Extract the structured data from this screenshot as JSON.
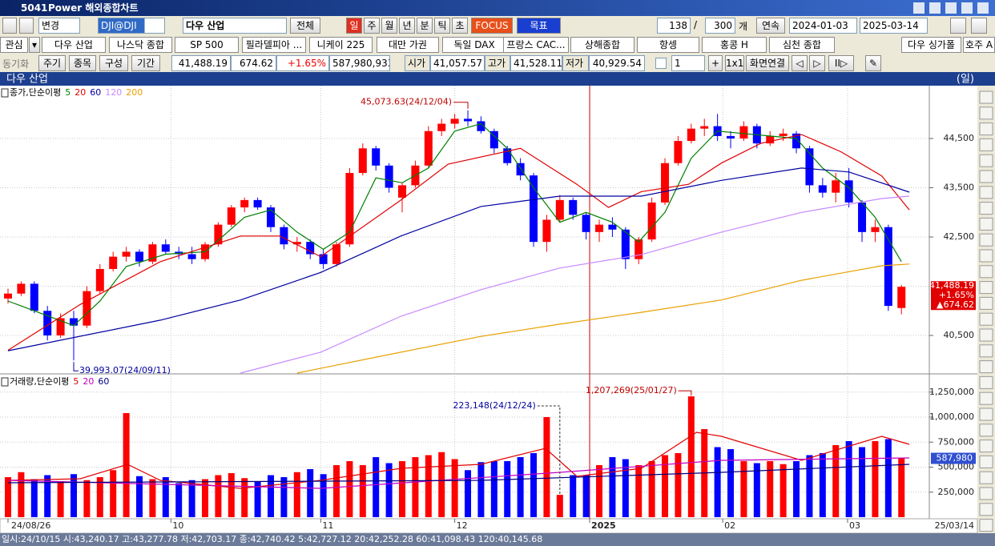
{
  "window": {
    "id": "5041",
    "title": "Power 해외종합차트"
  },
  "toolbar": {
    "change": "변경",
    "code": "DJI@DJI",
    "name": "다우 산업",
    "all": "전체",
    "periods": [
      "일",
      "주",
      "월",
      "년",
      "분",
      "틱",
      "초"
    ],
    "focus": "FOCUS",
    "target": "목표",
    "count": "138",
    "max": "300",
    "unit": "개",
    "continuous": "연속",
    "from": "2024-01-03",
    "to": "2025-03-14"
  },
  "tabs": [
    "관심",
    "다우 산업",
    "나스닥 종합",
    "SP 500",
    "필라델피아 ...",
    "니케이 225",
    "대만 가권",
    "독일 DAX",
    "프랑스 CAC...",
    "상해종합",
    "항셍",
    "홍콩 H",
    "심천 종합",
    "다우 싱가폴",
    "호주 A"
  ],
  "quote": {
    "buttons": [
      "동기화",
      "주기",
      "종목",
      "구성",
      "기간"
    ],
    "last": "41,488.19",
    "change": "674.62",
    "rate": "+1.65%",
    "volume": "587,980,933",
    "open_label": "시가",
    "open": "41,057.57",
    "high_label": "고가",
    "high": "41,528.11",
    "low_label": "저가",
    "low": "40,929.54",
    "layout": "1",
    "grid": "1x1",
    "link": "화면연결"
  },
  "panel_title": "다우 산업",
  "period_label": "(일)",
  "end_date": "25/03/14",
  "status": "일시:24/10/15 시:43,240.17 고:43,277.78 저:42,703.17 종:42,740.42 5:42,727.12 20:42,252.28 60:41,098.43 120:40,145.68",
  "chart_data": [
    {
      "type": "candlestick",
      "legend_title": "종가,단순이평",
      "up_color": "#ff0000",
      "down_color": "#0000ff",
      "open": [
        41250,
        41350,
        41550,
        41000,
        40500,
        40850,
        40700,
        41400,
        41850,
        42100,
        42200,
        42000,
        42350,
        42200,
        42150,
        42050,
        42350,
        42750,
        43100,
        43250,
        43100,
        42700,
        42350,
        42400,
        42150,
        41950,
        42350,
        43800,
        44300,
        43950,
        43300,
        43550,
        43950,
        44650,
        44800,
        44900,
        44850,
        44650,
        44300,
        44000,
        43750,
        42400,
        42850,
        43250,
        42950,
        42600,
        42750,
        42650,
        42050,
        42450,
        43200,
        44000,
        44450,
        44700,
        44750,
        44550,
        44500,
        44750,
        44400,
        44550,
        44600,
        44300,
        43550,
        43400,
        43650,
        43200,
        42600,
        42700,
        41057.57
      ],
      "high": [
        41450,
        41600,
        41600,
        41100,
        40950,
        41000,
        41500,
        41950,
        42200,
        42300,
        42250,
        42400,
        42450,
        42300,
        42300,
        42400,
        42800,
        43150,
        43300,
        43300,
        43150,
        42750,
        42500,
        42450,
        42250,
        42400,
        43900,
        44400,
        44350,
        44000,
        43600,
        44050,
        44750,
        44900,
        45000,
        45073.63,
        44950,
        44700,
        44350,
        44100,
        43800,
        42950,
        43350,
        43300,
        43000,
        42850,
        42900,
        42700,
        42500,
        43300,
        44100,
        44550,
        44800,
        44900,
        45000,
        44650,
        44850,
        44800,
        44650,
        44700,
        44650,
        44350,
        43700,
        43800,
        43900,
        43250,
        42850,
        42750,
        41528.11
      ],
      "low": [
        41150,
        41300,
        40950,
        40400,
        40450,
        39993.07,
        40650,
        41350,
        41800,
        42000,
        41900,
        41950,
        42150,
        42050,
        41950,
        42000,
        42300,
        42700,
        43000,
        43050,
        42600,
        42250,
        42200,
        42050,
        41850,
        41900,
        42300,
        43750,
        43850,
        43400,
        43000,
        43500,
        43900,
        44550,
        44700,
        44750,
        44600,
        44200,
        43950,
        43650,
        42300,
        42200,
        42800,
        42850,
        42450,
        42400,
        42500,
        41850,
        41950,
        42400,
        43150,
        43950,
        44400,
        44550,
        44450,
        44300,
        44450,
        44300,
        44350,
        44450,
        44200,
        43400,
        43300,
        43200,
        43100,
        42400,
        42400,
        41000,
        40929.54
      ],
      "close": [
        41350,
        41550,
        41000,
        40500,
        40850,
        40700,
        41400,
        41850,
        42100,
        42200,
        42000,
        42350,
        42200,
        42150,
        42050,
        42350,
        42750,
        43100,
        43250,
        43100,
        42700,
        42350,
        42400,
        42150,
        41950,
        42350,
        43800,
        44300,
        43950,
        43500,
        43550,
        43950,
        44650,
        44800,
        44900,
        44850,
        44650,
        44300,
        44000,
        43750,
        42400,
        42850,
        43250,
        42950,
        42600,
        42750,
        42650,
        42050,
        42450,
        43200,
        44000,
        44450,
        44700,
        44750,
        44550,
        44500,
        44750,
        44400,
        44550,
        44600,
        44300,
        43550,
        43400,
        43650,
        43200,
        42600,
        42700,
        41100,
        41488.19
      ],
      "series": [
        {
          "name": "5",
          "color": "#008000",
          "x": [
            0,
            3,
            5,
            7,
            9,
            12,
            15,
            18,
            20,
            22,
            24,
            26,
            28,
            30,
            32,
            34,
            36,
            38,
            40,
            42,
            44,
            46,
            48,
            50,
            52,
            54,
            56,
            58,
            60,
            62,
            64,
            66,
            68
          ],
          "values": [
            41200,
            40900,
            40700,
            41200,
            41900,
            42150,
            42200,
            42900,
            43050,
            42600,
            42250,
            42600,
            43700,
            43600,
            43900,
            44650,
            44800,
            44300,
            43500,
            42800,
            43000,
            42800,
            42400,
            43000,
            44100,
            44650,
            44600,
            44550,
            44500,
            43900,
            43500,
            42900,
            42000
          ]
        },
        {
          "name": "20",
          "color": "#e00000",
          "x": [
            0,
            5.5,
            11.6,
            17.7,
            20.7,
            23.8,
            29.9,
            33.5,
            39,
            43.3,
            45.7,
            48.2,
            51.8,
            54.3,
            57.3,
            60.4,
            63.4,
            66.5,
            68.6
          ],
          "values": [
            40200,
            41130,
            42000,
            42520,
            42520,
            42100,
            43250,
            43980,
            44300,
            43570,
            43100,
            43420,
            43570,
            44000,
            44400,
            44580,
            44230,
            43740,
            43050
          ]
        },
        {
          "name": "60",
          "color": "#0000a0",
          "x": [
            0,
            11.6,
            17.7,
            23.8,
            29.9,
            36,
            42,
            48.2,
            54.3,
            60.4,
            64,
            68.6
          ],
          "values": [
            40190,
            40810,
            41220,
            41780,
            42520,
            43120,
            43330,
            43330,
            43650,
            43900,
            43820,
            43410
          ]
        },
        {
          "name": "120",
          "color": "#c888ff",
          "x": [
            17.7,
            23.8,
            29.9,
            36,
            42,
            48.2,
            54.3,
            60.4,
            66.5,
            68.6
          ],
          "values": [
            39736,
            40160,
            40890,
            41430,
            41870,
            42140,
            42600,
            43000,
            43280,
            43330
          ]
        },
        {
          "name": "200",
          "color": "#e8a000",
          "x": [
            22,
            29.9,
            36,
            42,
            48.2,
            54.3,
            60.4,
            66.5,
            68.6
          ],
          "values": [
            39736,
            40160,
            40480,
            40730,
            40970,
            41220,
            41620,
            41915,
            41950
          ]
        }
      ],
      "xlim": [
        -0.61,
        70.12
      ],
      "ylim": [
        39736,
        45573
      ],
      "yticks": [
        {
          "value": 40500,
          "label": "40,500"
        },
        {
          "value": 41500,
          "label": "41,500"
        },
        {
          "value": 42500,
          "label": "42,500"
        },
        {
          "value": 43500,
          "label": "43,500"
        },
        {
          "value": 44500,
          "label": "44,500"
        }
      ],
      "annotations": [
        "45,073.63(24/12/04)",
        "39,993.07(24/09/11)"
      ],
      "last_labels": [
        "41,488.19",
        "+1.65%",
        "▲674.62"
      ],
      "grid": true
    },
    {
      "type": "bar",
      "legend_title": "거래량,단순이평",
      "values": [
        400000,
        450000,
        380000,
        420000,
        360000,
        430000,
        370000,
        400000,
        470000,
        1040000,
        410000,
        380000,
        400000,
        340000,
        370000,
        380000,
        420000,
        440000,
        390000,
        360000,
        420000,
        400000,
        450000,
        480000,
        430000,
        520000,
        560000,
        520000,
        600000,
        540000,
        560000,
        600000,
        620000,
        650000,
        580000,
        470000,
        550000,
        560000,
        560000,
        600000,
        640000,
        1000000,
        223148,
        420000,
        420000,
        520000,
        600000,
        580000,
        520000,
        560000,
        620000,
        640000,
        1207269,
        880000,
        700000,
        680000,
        560000,
        540000,
        560000,
        530000,
        560000,
        620000,
        640000,
        720000,
        760000,
        700000,
        760000,
        780000,
        587980
      ],
      "series": [
        {
          "name": "5",
          "color": "#e00000",
          "x": [
            0,
            5.5,
            9.1,
            11.6,
            17.7,
            23.8,
            29.9,
            36,
            40.9,
            43.3,
            48.2,
            52.4,
            54.3,
            60.4,
            66.5,
            68.6
          ],
          "values": [
            368000,
            384000,
            528000,
            368000,
            288000,
            368000,
            488000,
            528000,
            688000,
            408000,
            488000,
            848000,
            808000,
            568000,
            808000,
            728000
          ]
        },
        {
          "name": "20",
          "color": "#c000c0",
          "x": [
            0,
            23.8,
            42,
            54.3,
            68.6
          ],
          "values": [
            368000,
            288000,
            448000,
            568000,
            592000
          ]
        },
        {
          "name": "60",
          "color": "#000080",
          "x": [
            0,
            36,
            54.3,
            68.6
          ],
          "values": [
            344000,
            368000,
            448000,
            528000
          ]
        }
      ],
      "xlim": [
        -0.61,
        70.12
      ],
      "ylim": [
        0,
        1424000
      ],
      "yticks": [
        {
          "value": 250000,
          "label": "250,000"
        },
        {
          "value": 500000,
          "label": "500,000"
        },
        {
          "value": 750000,
          "label": "750,000"
        },
        {
          "value": 1000000,
          "label": "1,000,000"
        },
        {
          "value": 1250000,
          "label": "1,250,000"
        }
      ],
      "xticks": [
        {
          "value": 0,
          "label": "24/08/26"
        },
        {
          "value": 12.4,
          "label": "10"
        },
        {
          "value": 23.8,
          "label": "11"
        },
        {
          "value": 34,
          "label": "12"
        },
        {
          "value": 44.27,
          "label": "2025"
        },
        {
          "value": 54.4,
          "label": "02"
        },
        {
          "value": 63.9,
          "label": "03"
        }
      ],
      "annotations": [
        "223,148(24/12/24)",
        "1,207,269(25/01/27)"
      ],
      "last_labels": [
        "587,980"
      ],
      "grid": true
    }
  ]
}
